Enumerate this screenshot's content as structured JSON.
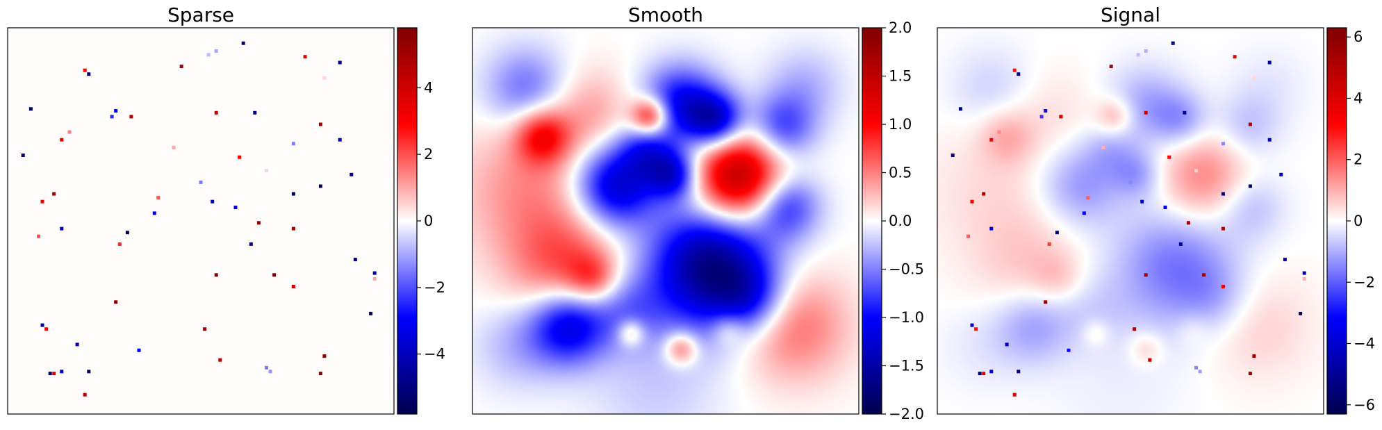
{
  "chart_data": [
    {
      "type": "heatmap",
      "title": "Sparse",
      "colormap": "seismic",
      "colorbar": {
        "range": [
          -5.8,
          5.8
        ],
        "ticks": [
          -4,
          -2,
          0,
          2,
          4
        ],
        "tick_labels": [
          "−4",
          "−2",
          "0",
          "2",
          "4"
        ]
      },
      "background_value": 0,
      "points": [
        {
          "x": 0.61,
          "y": 0.04,
          "v": -5.5
        },
        {
          "x": 0.21,
          "y": 0.12,
          "v": -5.2
        },
        {
          "x": 0.2,
          "y": 0.11,
          "v": 3.0
        },
        {
          "x": 0.45,
          "y": 0.1,
          "v": 5.0
        },
        {
          "x": 0.77,
          "y": 0.075,
          "v": 3.5
        },
        {
          "x": 0.86,
          "y": 0.09,
          "v": -4.5
        },
        {
          "x": 0.54,
          "y": 0.06,
          "v": -1.0
        },
        {
          "x": 0.52,
          "y": 0.07,
          "v": -0.8
        },
        {
          "x": 0.82,
          "y": 0.13,
          "v": 0.5
        },
        {
          "x": 0.06,
          "y": 0.21,
          "v": -5.5
        },
        {
          "x": 0.28,
          "y": 0.215,
          "v": -3.0
        },
        {
          "x": 0.27,
          "y": 0.23,
          "v": -2.5
        },
        {
          "x": 0.32,
          "y": 0.23,
          "v": 4.5
        },
        {
          "x": 0.54,
          "y": 0.22,
          "v": 4.0
        },
        {
          "x": 0.64,
          "y": 0.22,
          "v": -5.0
        },
        {
          "x": 0.81,
          "y": 0.25,
          "v": 5.0
        },
        {
          "x": 0.86,
          "y": 0.29,
          "v": -4.0
        },
        {
          "x": 0.16,
          "y": 0.27,
          "v": 1.5
        },
        {
          "x": 0.14,
          "y": 0.29,
          "v": 3.5
        },
        {
          "x": 0.04,
          "y": 0.33,
          "v": -5.0
        },
        {
          "x": 0.43,
          "y": 0.31,
          "v": 1.0
        },
        {
          "x": 0.74,
          "y": 0.3,
          "v": -1.5
        },
        {
          "x": 0.6,
          "y": 0.335,
          "v": 3.0
        },
        {
          "x": 0.67,
          "y": 0.37,
          "v": 0.5
        },
        {
          "x": 0.89,
          "y": 0.38,
          "v": -4.5
        },
        {
          "x": 0.5,
          "y": 0.4,
          "v": -1.5
        },
        {
          "x": 0.81,
          "y": 0.41,
          "v": -5.5
        },
        {
          "x": 0.12,
          "y": 0.43,
          "v": 5.0
        },
        {
          "x": 0.09,
          "y": 0.45,
          "v": 3.5
        },
        {
          "x": 0.39,
          "y": 0.44,
          "v": 2.0
        },
        {
          "x": 0.74,
          "y": 0.43,
          "v": -5.5
        },
        {
          "x": 0.53,
          "y": 0.45,
          "v": -4.0
        },
        {
          "x": 0.59,
          "y": 0.465,
          "v": -3.5
        },
        {
          "x": 0.38,
          "y": 0.48,
          "v": -3.5
        },
        {
          "x": 0.65,
          "y": 0.505,
          "v": 5.5
        },
        {
          "x": 0.14,
          "y": 0.52,
          "v": -4.0
        },
        {
          "x": 0.31,
          "y": 0.53,
          "v": -5.5
        },
        {
          "x": 0.74,
          "y": 0.52,
          "v": 5.0
        },
        {
          "x": 0.08,
          "y": 0.54,
          "v": 2.0
        },
        {
          "x": 0.29,
          "y": 0.56,
          "v": 2.5
        },
        {
          "x": 0.63,
          "y": 0.56,
          "v": -4.5
        },
        {
          "x": 0.9,
          "y": 0.6,
          "v": -4.5
        },
        {
          "x": 0.54,
          "y": 0.64,
          "v": 5.5
        },
        {
          "x": 0.69,
          "y": 0.64,
          "v": 5.5
        },
        {
          "x": 0.95,
          "y": 0.635,
          "v": -4.5
        },
        {
          "x": 0.95,
          "y": 0.65,
          "v": 1.0
        },
        {
          "x": 0.74,
          "y": 0.67,
          "v": 4.0
        },
        {
          "x": 0.28,
          "y": 0.71,
          "v": 5.5
        },
        {
          "x": 0.94,
          "y": 0.74,
          "v": -5.5
        },
        {
          "x": 0.09,
          "y": 0.77,
          "v": -4.5
        },
        {
          "x": 0.1,
          "y": 0.78,
          "v": 3.0
        },
        {
          "x": 0.51,
          "y": 0.78,
          "v": 5.0
        },
        {
          "x": 0.18,
          "y": 0.82,
          "v": -4.0
        },
        {
          "x": 0.34,
          "y": 0.835,
          "v": -3.0
        },
        {
          "x": 0.82,
          "y": 0.85,
          "v": 5.5
        },
        {
          "x": 0.55,
          "y": 0.86,
          "v": 4.5
        },
        {
          "x": 0.67,
          "y": 0.88,
          "v": -1.5
        },
        {
          "x": 0.68,
          "y": 0.89,
          "v": -1.2
        },
        {
          "x": 0.11,
          "y": 0.895,
          "v": -5.5
        },
        {
          "x": 0.12,
          "y": 0.895,
          "v": 3.5
        },
        {
          "x": 0.14,
          "y": 0.89,
          "v": -4.0
        },
        {
          "x": 0.21,
          "y": 0.89,
          "v": -5.5
        },
        {
          "x": 0.81,
          "y": 0.895,
          "v": 5.5
        },
        {
          "x": 0.2,
          "y": 0.95,
          "v": 4.5
        }
      ]
    },
    {
      "type": "heatmap",
      "title": "Smooth",
      "colormap": "seismic",
      "colorbar": {
        "range": [
          -2.0,
          2.0
        ],
        "ticks": [
          -2.0,
          -1.5,
          -1.0,
          -0.5,
          0.0,
          0.5,
          1.0,
          1.5,
          2.0
        ],
        "tick_labels": [
          "−2.0",
          "−1.5",
          "−1.0",
          "−0.5",
          "0.0",
          "0.5",
          "1.0",
          "1.5",
          "2.0"
        ]
      },
      "bumps": [
        {
          "x": 0.14,
          "y": 0.16,
          "s": 0.075,
          "v": -0.6
        },
        {
          "x": 0.18,
          "y": 0.28,
          "s": 0.05,
          "v": 0.9
        },
        {
          "x": 0.15,
          "y": 0.42,
          "s": 0.13,
          "v": 0.45
        },
        {
          "x": 0.3,
          "y": 0.22,
          "s": 0.08,
          "v": 0.35
        },
        {
          "x": 0.46,
          "y": 0.23,
          "s": 0.035,
          "v": 1.2
        },
        {
          "x": 0.54,
          "y": 0.2,
          "s": 0.07,
          "v": -1.1
        },
        {
          "x": 0.63,
          "y": 0.24,
          "s": 0.05,
          "v": -1.2
        },
        {
          "x": 0.8,
          "y": 0.26,
          "s": 0.06,
          "v": -0.8
        },
        {
          "x": 0.37,
          "y": 0.41,
          "s": 0.075,
          "v": -1.3
        },
        {
          "x": 0.52,
          "y": 0.38,
          "s": 0.045,
          "v": -1.1
        },
        {
          "x": 0.45,
          "y": 0.32,
          "s": 0.05,
          "v": -0.7
        },
        {
          "x": 0.69,
          "y": 0.39,
          "s": 0.085,
          "v": 1.6
        },
        {
          "x": 0.81,
          "y": 0.46,
          "s": 0.06,
          "v": -0.9
        },
        {
          "x": 0.24,
          "y": 0.62,
          "s": 0.1,
          "v": 0.65
        },
        {
          "x": 0.31,
          "y": 0.65,
          "s": 0.045,
          "v": 0.55
        },
        {
          "x": 0.62,
          "y": 0.62,
          "s": 0.11,
          "v": -1.75
        },
        {
          "x": 0.72,
          "y": 0.7,
          "s": 0.06,
          "v": -0.6
        },
        {
          "x": 0.25,
          "y": 0.77,
          "s": 0.07,
          "v": -1.2
        },
        {
          "x": 0.4,
          "y": 0.73,
          "s": 0.07,
          "v": -0.5
        },
        {
          "x": 0.83,
          "y": 0.77,
          "s": 0.1,
          "v": 0.6
        },
        {
          "x": 0.41,
          "y": 0.79,
          "s": 0.025,
          "v": 0.6
        },
        {
          "x": 0.54,
          "y": 0.83,
          "s": 0.03,
          "v": 0.7
        },
        {
          "x": 0.66,
          "y": 0.78,
          "s": 0.03,
          "v": 0.35
        },
        {
          "x": 0.47,
          "y": 0.93,
          "s": 0.12,
          "v": -0.2
        },
        {
          "x": 0.12,
          "y": 0.82,
          "s": 0.08,
          "v": -0.3
        },
        {
          "x": 0.86,
          "y": 0.15,
          "s": 0.07,
          "v": -0.3
        }
      ]
    },
    {
      "type": "heatmap",
      "title": "Signal",
      "colormap": "seismic",
      "composition": "Smooth + Sparse",
      "colorbar": {
        "range": [
          -6.3,
          6.3
        ],
        "ticks": [
          -6,
          -4,
          -2,
          0,
          2,
          4,
          6
        ],
        "tick_labels": [
          "−6",
          "−4",
          "−2",
          "0",
          "2",
          "4",
          "6"
        ]
      }
    }
  ]
}
